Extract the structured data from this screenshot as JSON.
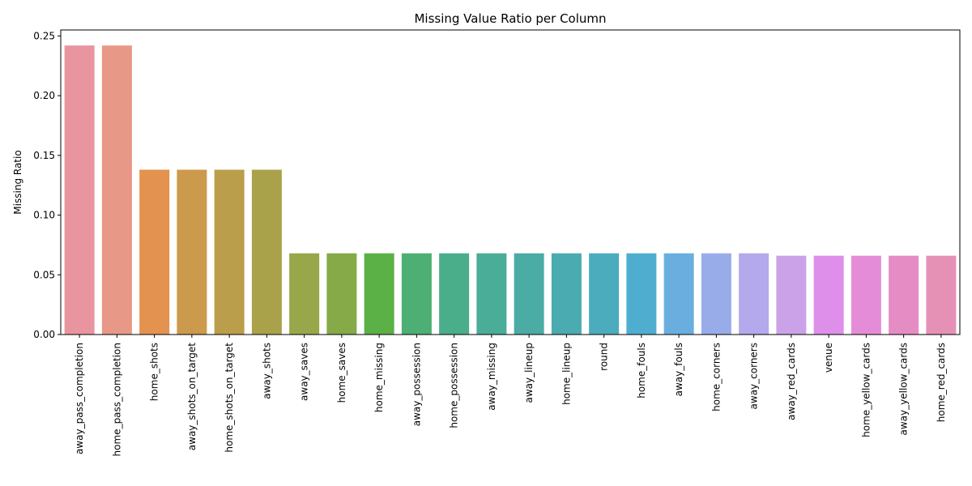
{
  "chart_data": {
    "type": "bar",
    "title": "Missing Value Ratio per Column",
    "xlabel": "",
    "ylabel": "Missing Ratio",
    "ylim": [
      0,
      0.255
    ],
    "yticks": [
      "0.00",
      "0.05",
      "0.10",
      "0.15",
      "0.20",
      "0.25"
    ],
    "grid": false,
    "legend": "none",
    "categories": [
      "away_pass_completion",
      "home_pass_completion",
      "home_shots",
      "away_shots_on_target",
      "home_shots_on_target",
      "away_shots",
      "away_saves",
      "home_saves",
      "home_missing",
      "away_possession",
      "home_possession",
      "away_missing",
      "away_lineup",
      "home_lineup",
      "round",
      "home_fouls",
      "away_fouls",
      "home_corners",
      "away_corners",
      "away_red_cards",
      "venue",
      "home_yellow_cards",
      "away_yellow_cards",
      "home_red_cards"
    ],
    "values": [
      0.242,
      0.242,
      0.138,
      0.138,
      0.138,
      0.138,
      0.068,
      0.068,
      0.068,
      0.068,
      0.068,
      0.068,
      0.068,
      0.068,
      0.068,
      0.068,
      0.068,
      0.068,
      0.068,
      0.066,
      0.066,
      0.066,
      0.066,
      0.066
    ],
    "colors": [
      "#e8959f",
      "#e89886",
      "#e3924f",
      "#cc9a4c",
      "#bb9e4b",
      "#aaa24b",
      "#98a74a",
      "#85aa47",
      "#5bb046",
      "#4daf73",
      "#4aae8a",
      "#4aad98",
      "#4aaca5",
      "#4aabb0",
      "#4bacbe",
      "#4faed0",
      "#6aaee0",
      "#99acea",
      "#b3a9ec",
      "#cba2e8",
      "#de8fe9",
      "#e58cd8",
      "#e68cc4",
      "#e591b5"
    ]
  }
}
